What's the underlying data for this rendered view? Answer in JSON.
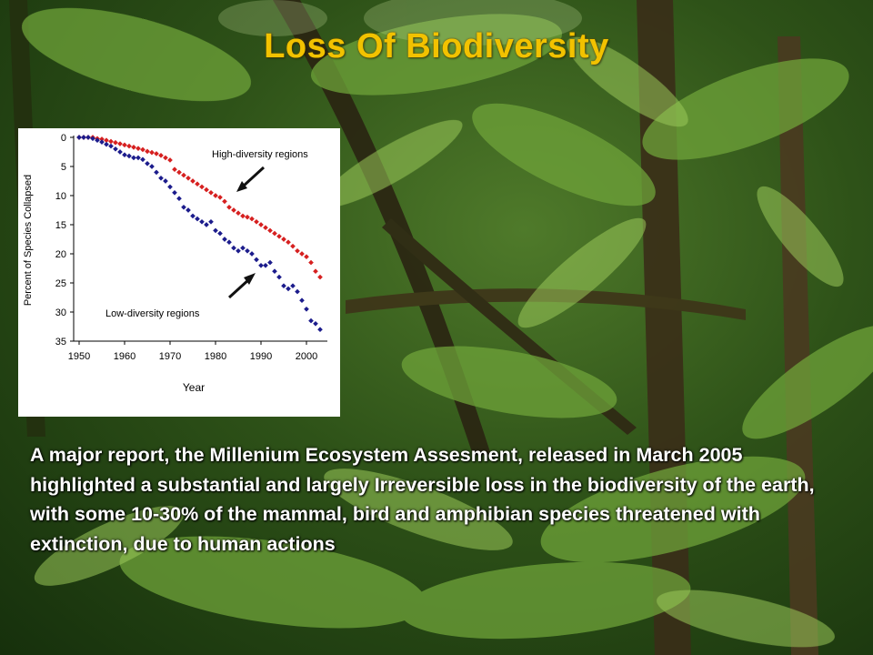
{
  "slide": {
    "title": "Loss Of Biodiversity",
    "body": "A major report, the Millenium Ecosystem Assesment, released in March 2005 highlighted a substantial and largely Irreversible loss in the biodiversity of the earth, with some 10-30% of the mammal, bird and amphibian species threatened with extinction, due to human actions",
    "title_color": "#f2c200",
    "text_color": "#ffffff"
  },
  "chart_data": {
    "type": "scatter",
    "title": "",
    "xlabel": "Year",
    "ylabel": "Percent of Species Collapsed",
    "xlim": [
      1950,
      2003
    ],
    "ylim": [
      0,
      35
    ],
    "y_inverted": true,
    "x_ticks": [
      "1950",
      "1960",
      "1970",
      "1980",
      "1990",
      "2000"
    ],
    "y_ticks": [
      "0",
      "5",
      "10",
      "15",
      "20",
      "25",
      "30",
      "35"
    ],
    "grid": false,
    "annotations": [
      {
        "text": "High-diversity regions",
        "points_to": "High-diversity regions"
      },
      {
        "text": "Low-diversity regions",
        "points_to": "Low-diversity regions"
      }
    ],
    "series": [
      {
        "name": "High-diversity regions",
        "color": "#d62020",
        "x": [
          1950,
          1951,
          1952,
          1953,
          1954,
          1955,
          1956,
          1957,
          1958,
          1959,
          1960,
          1961,
          1962,
          1963,
          1964,
          1965,
          1966,
          1967,
          1968,
          1969,
          1970,
          1971,
          1972,
          1973,
          1974,
          1975,
          1976,
          1977,
          1978,
          1979,
          1980,
          1981,
          1982,
          1983,
          1984,
          1985,
          1986,
          1987,
          1988,
          1989,
          1990,
          1991,
          1992,
          1993,
          1994,
          1995,
          1996,
          1997,
          1998,
          1999,
          2000,
          2001,
          2002,
          2003
        ],
        "y": [
          0,
          0,
          0,
          0,
          0.2,
          0.3,
          0.5,
          0.7,
          0.9,
          1.1,
          1.3,
          1.5,
          1.7,
          1.9,
          2.1,
          2.4,
          2.6,
          2.8,
          3.1,
          3.5,
          3.9,
          5.5,
          6.0,
          6.5,
          7.0,
          7.5,
          8.0,
          8.5,
          9.0,
          9.5,
          10.0,
          10.3,
          11.0,
          12.0,
          12.5,
          13.0,
          13.5,
          13.7,
          14.0,
          14.5,
          15.0,
          15.5,
          16.0,
          16.5,
          17.0,
          17.5,
          18.0,
          18.7,
          19.5,
          20.0,
          20.5,
          21.5,
          23.0,
          24.0
        ]
      },
      {
        "name": "Low-diversity regions",
        "color": "#1c1c8c",
        "x": [
          1950,
          1951,
          1952,
          1953,
          1954,
          1955,
          1956,
          1957,
          1958,
          1959,
          1960,
          1961,
          1962,
          1963,
          1964,
          1965,
          1966,
          1967,
          1968,
          1969,
          1970,
          1971,
          1972,
          1973,
          1974,
          1975,
          1976,
          1977,
          1978,
          1979,
          1980,
          1981,
          1982,
          1983,
          1984,
          1985,
          1986,
          1987,
          1988,
          1989,
          1990,
          1991,
          1992,
          1993,
          1994,
          1995,
          1996,
          1997,
          1998,
          1999,
          2000,
          2001,
          2002,
          2003
        ],
        "y": [
          0,
          0,
          0,
          0.2,
          0.5,
          0.8,
          1.2,
          1.5,
          2.0,
          2.5,
          3.0,
          3.2,
          3.5,
          3.5,
          3.8,
          4.5,
          5.0,
          6.0,
          7.0,
          7.5,
          8.5,
          9.5,
          10.5,
          12.0,
          12.5,
          13.5,
          14.0,
          14.5,
          15.0,
          14.5,
          16.0,
          16.5,
          17.5,
          18.0,
          19.0,
          19.5,
          19.0,
          19.5,
          20.0,
          21.0,
          22.0,
          22.0,
          21.5,
          23.0,
          24.0,
          25.5,
          26.0,
          25.5,
          26.5,
          28.0,
          29.5,
          31.5,
          32.0,
          33.0
        ]
      }
    ]
  }
}
